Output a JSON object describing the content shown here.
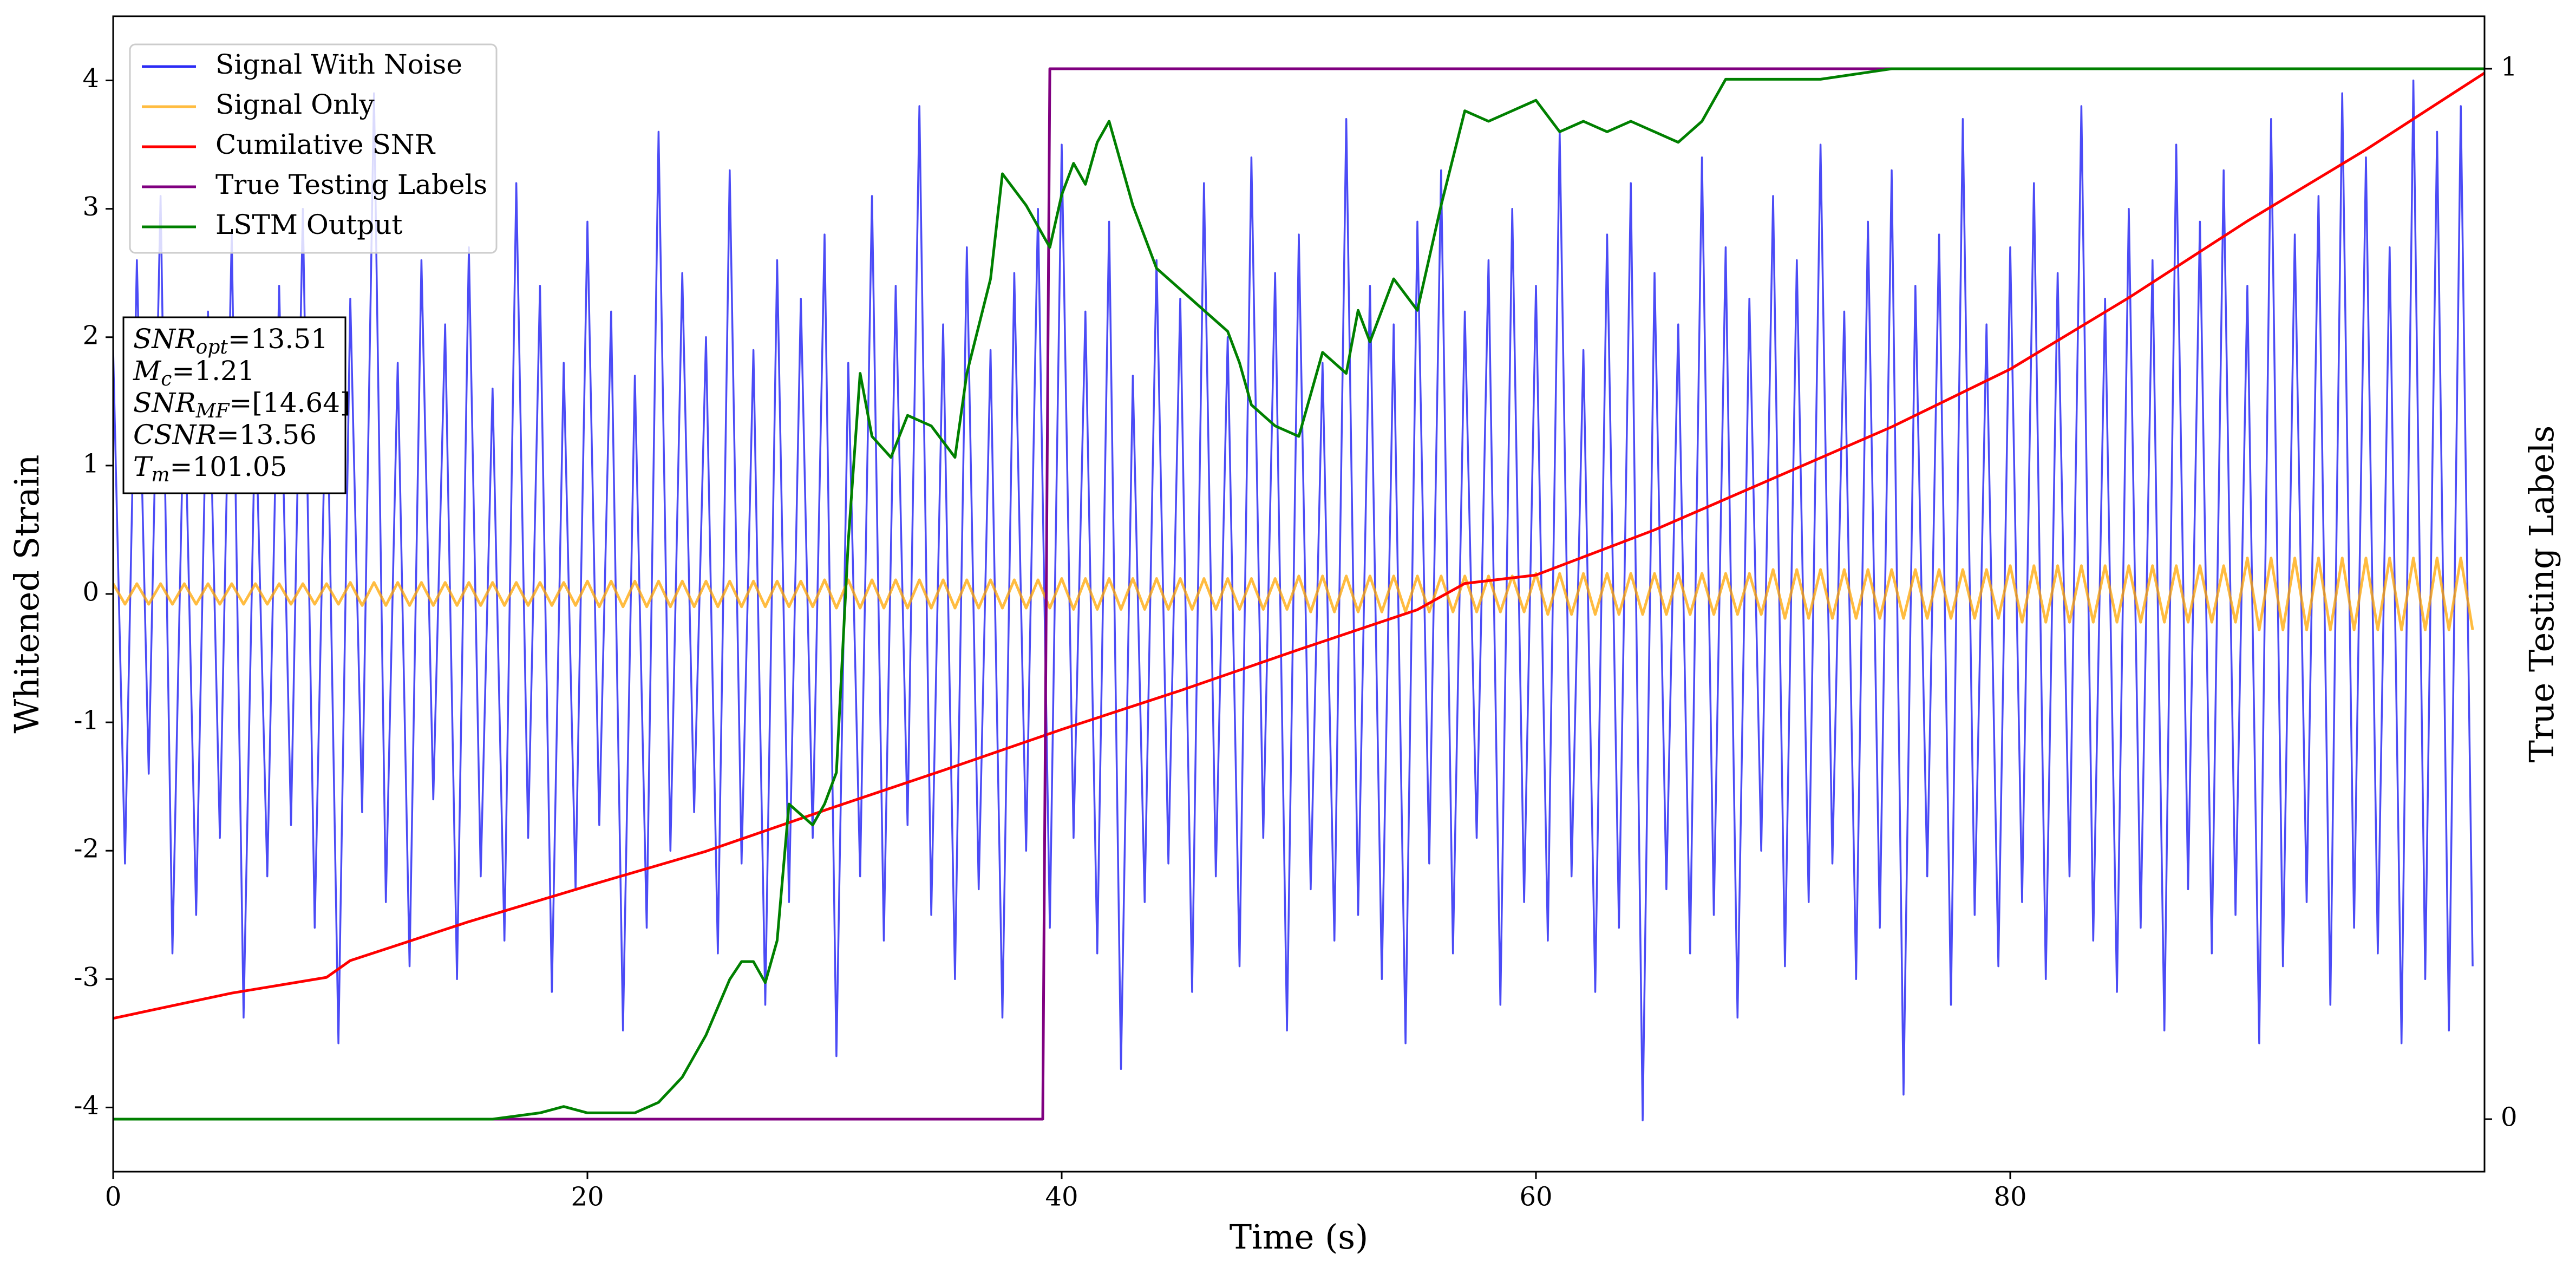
{
  "chart_data": {
    "type": "line",
    "xlabel": "Time (s)",
    "ylabel": "Whitened Strain",
    "y2label": "True Testing Labels",
    "xlim": [
      0,
      100
    ],
    "xticks": [
      0,
      20,
      40,
      60,
      80
    ],
    "ylim": [
      -4.5,
      4.5
    ],
    "yticks": [
      -4,
      -3,
      -2,
      -1,
      0,
      1,
      2,
      3,
      4
    ],
    "y2lim": [
      -0.05,
      1.05
    ],
    "y2ticks": [
      0,
      1
    ],
    "legend": "upper left",
    "x": [
      0,
      0.5,
      1,
      1.5,
      2,
      2.5,
      3,
      3.5,
      4,
      4.5,
      5,
      5.5,
      6,
      6.5,
      7,
      7.5,
      8,
      8.5,
      9,
      9.5,
      10,
      10.5,
      11,
      11.5,
      12,
      12.5,
      13,
      13.5,
      14,
      14.5,
      15,
      15.5,
      16,
      16.5,
      17,
      17.5,
      18,
      18.5,
      19,
      19.5,
      20,
      20.5,
      21,
      21.5,
      22,
      22.5,
      23,
      23.5,
      24,
      24.5,
      25,
      25.5,
      26,
      26.5,
      27,
      27.5,
      28,
      28.5,
      29,
      29.5,
      30,
      30.5,
      31,
      31.5,
      32,
      32.5,
      33,
      33.5,
      34,
      34.5,
      35,
      35.5,
      36,
      36.5,
      37,
      37.5,
      38,
      38.5,
      39,
      39.5,
      40,
      40.5,
      41,
      41.5,
      42,
      42.5,
      43,
      43.5,
      44,
      44.5,
      45,
      45.5,
      46,
      46.5,
      47,
      47.5,
      48,
      48.5,
      49,
      49.5,
      50,
      50.5,
      51,
      51.5,
      52,
      52.5,
      53,
      53.5,
      54,
      54.5,
      55,
      55.5,
      56,
      56.5,
      57,
      57.5,
      58,
      58.5,
      59,
      59.5,
      60,
      60.5,
      61,
      61.5,
      62,
      62.5,
      63,
      63.5,
      64,
      64.5,
      65,
      65.5,
      66,
      66.5,
      67,
      67.5,
      68,
      68.5,
      69,
      69.5,
      70,
      70.5,
      71,
      71.5,
      72,
      72.5,
      73,
      73.5,
      74,
      74.5,
      75,
      75.5,
      76,
      76.5,
      77,
      77.5,
      78,
      78.5,
      79,
      79.5,
      80,
      80.5,
      81,
      81.5,
      82,
      82.5,
      83,
      83.5,
      84,
      84.5,
      85,
      85.5,
      86,
      86.5,
      87,
      87.5,
      88,
      88.5,
      89,
      89.5,
      90,
      90.5,
      91,
      91.5,
      92,
      92.5,
      93,
      93.5,
      94,
      94.5,
      95,
      95.5,
      96,
      96.5,
      97,
      97.5,
      98,
      98.5,
      99,
      99.5
    ],
    "series": [
      {
        "name": "Signal With Noise",
        "color": "#2b2bf5",
        "values": [
          1.9,
          -2.1,
          2.6,
          -1.4,
          3.1,
          -2.8,
          1.7,
          -2.5,
          2.2,
          -1.9,
          2.8,
          -3.3,
          1.5,
          -2.2,
          2.4,
          -1.8,
          3.0,
          -2.6,
          1.9,
          -3.5,
          2.3,
          -1.7,
          3.9,
          -2.4,
          1.8,
          -2.9,
          2.6,
          -1.6,
          2.1,
          -3.0,
          2.7,
          -2.2,
          1.6,
          -2.7,
          3.2,
          -1.9,
          2.4,
          -3.1,
          1.8,
          -2.3,
          2.9,
          -1.8,
          2.2,
          -3.4,
          1.7,
          -2.6,
          3.6,
          -2.0,
          2.5,
          -1.7,
          2.0,
          -2.8,
          3.3,
          -2.1,
          1.9,
          -3.2,
          2.6,
          -2.4,
          2.3,
          -1.9,
          2.8,
          -3.6,
          1.8,
          -2.2,
          3.1,
          -2.7,
          2.4,
          -1.8,
          3.8,
          -2.5,
          2.1,
          -3.0,
          2.7,
          -2.3,
          1.9,
          -3.3,
          2.5,
          -2.0,
          3.0,
          -2.6,
          3.5,
          -1.9,
          2.2,
          -2.8,
          2.9,
          -3.7,
          1.7,
          -2.4,
          2.6,
          -2.1,
          2.3,
          -3.1,
          3.2,
          -2.2,
          2.0,
          -2.9,
          3.4,
          -1.9,
          2.5,
          -3.4,
          2.8,
          -2.3,
          1.8,
          -2.7,
          3.7,
          -2.5,
          2.4,
          -3.0,
          2.1,
          -3.5,
          2.9,
          -2.1,
          3.3,
          -2.8,
          2.2,
          -1.9,
          2.6,
          -3.2,
          3.0,
          -2.4,
          2.4,
          -2.7,
          3.6,
          -2.2,
          1.9,
          -3.1,
          2.8,
          -2.6,
          3.2,
          -4.1,
          2.5,
          -2.3,
          2.1,
          -2.8,
          3.4,
          -2.5,
          2.7,
          -3.3,
          2.3,
          -2.0,
          3.1,
          -2.9,
          2.6,
          -2.4,
          3.5,
          -2.1,
          2.2,
          -3.0,
          2.9,
          -2.6,
          3.3,
          -3.9,
          2.4,
          -2.2,
          2.8,
          -3.2,
          3.7,
          -2.5,
          2.1,
          -2.9,
          2.7,
          -2.4,
          3.2,
          -3.0,
          2.5,
          -2.2,
          3.8,
          -2.7,
          2.3,
          -3.1,
          3.0,
          -2.6,
          2.6,
          -3.4,
          3.5,
          -2.3,
          2.9,
          -2.8,
          3.3,
          -2.5,
          2.4,
          -3.5,
          3.7,
          -2.9,
          2.8,
          -2.4,
          3.1,
          -3.2,
          3.9,
          -2.6,
          3.4,
          -2.8,
          2.7,
          -3.5,
          4.0,
          -3.0,
          3.6,
          -3.4,
          3.8,
          -2.9
        ]
      },
      {
        "name": "Signal Only",
        "color": "#ffa500",
        "values": [
          0.08,
          -0.08,
          0.08,
          -0.08,
          0.08,
          -0.08,
          0.08,
          -0.08,
          0.08,
          -0.08,
          0.08,
          -0.08,
          0.08,
          -0.08,
          0.08,
          -0.08,
          0.08,
          -0.08,
          0.08,
          -0.08,
          0.09,
          -0.09,
          0.09,
          -0.09,
          0.09,
          -0.09,
          0.09,
          -0.09,
          0.09,
          -0.09,
          0.09,
          -0.09,
          0.09,
          -0.09,
          0.09,
          -0.09,
          0.09,
          -0.09,
          0.09,
          -0.09,
          0.1,
          -0.1,
          0.1,
          -0.1,
          0.1,
          -0.1,
          0.1,
          -0.1,
          0.1,
          -0.1,
          0.1,
          -0.1,
          0.1,
          -0.1,
          0.1,
          -0.1,
          0.1,
          -0.1,
          0.1,
          -0.1,
          0.11,
          -0.11,
          0.11,
          -0.11,
          0.11,
          -0.11,
          0.11,
          -0.11,
          0.11,
          -0.11,
          0.11,
          -0.11,
          0.11,
          -0.11,
          0.11,
          -0.11,
          0.11,
          -0.11,
          0.11,
          -0.11,
          0.12,
          -0.12,
          0.12,
          -0.12,
          0.12,
          -0.12,
          0.12,
          -0.12,
          0.12,
          -0.12,
          0.12,
          -0.12,
          0.12,
          -0.12,
          0.12,
          -0.12,
          0.12,
          -0.12,
          0.12,
          -0.12,
          0.14,
          -0.14,
          0.14,
          -0.14,
          0.14,
          -0.14,
          0.14,
          -0.14,
          0.14,
          -0.14,
          0.14,
          -0.14,
          0.14,
          -0.14,
          0.14,
          -0.14,
          0.14,
          -0.14,
          0.14,
          -0.14,
          0.16,
          -0.16,
          0.16,
          -0.16,
          0.16,
          -0.16,
          0.16,
          -0.16,
          0.16,
          -0.16,
          0.16,
          -0.16,
          0.16,
          -0.16,
          0.16,
          -0.16,
          0.16,
          -0.16,
          0.16,
          -0.16,
          0.19,
          -0.19,
          0.19,
          -0.19,
          0.19,
          -0.19,
          0.19,
          -0.19,
          0.19,
          -0.19,
          0.19,
          -0.19,
          0.19,
          -0.19,
          0.19,
          -0.19,
          0.19,
          -0.19,
          0.19,
          -0.19,
          0.22,
          -0.22,
          0.22,
          -0.22,
          0.22,
          -0.22,
          0.22,
          -0.22,
          0.22,
          -0.22,
          0.22,
          -0.22,
          0.22,
          -0.22,
          0.22,
          -0.22,
          0.22,
          -0.22,
          0.22,
          -0.22,
          0.28,
          -0.28,
          0.28,
          -0.28,
          0.28,
          -0.28,
          0.28,
          -0.28,
          0.28,
          -0.28,
          0.28,
          -0.28,
          0.28,
          -0.28,
          0.28,
          -0.28,
          0.28,
          -0.28,
          0.28,
          -0.28
        ]
      },
      {
        "name": "Cumilative SNR",
        "color": "#ff0000",
        "axis": "y2",
        "x": [
          0,
          5,
          9,
          10,
          15,
          20,
          25,
          30,
          35,
          40,
          45,
          50,
          55,
          57,
          60,
          65,
          70,
          75,
          80,
          85,
          90,
          95,
          100
        ],
        "values": [
          0.096,
          0.12,
          0.135,
          0.151,
          0.188,
          0.222,
          0.255,
          0.294,
          0.332,
          0.371,
          0.408,
          0.447,
          0.485,
          0.51,
          0.518,
          0.561,
          0.61,
          0.659,
          0.714,
          0.782,
          0.855,
          0.923,
          0.996
        ]
      },
      {
        "name": "True Testing Labels",
        "color": "#800080",
        "axis": "y2",
        "x": [
          0,
          39.2,
          39.5,
          100
        ],
        "values": [
          0,
          0,
          1,
          1
        ]
      },
      {
        "name": "LSTM Output",
        "color": "#008000",
        "axis": "y2",
        "x": [
          0,
          16,
          18,
          19,
          20,
          22,
          23,
          24,
          25,
          26,
          26.5,
          27,
          27.5,
          28,
          28.5,
          29.5,
          30,
          30.5,
          31,
          31.5,
          32,
          32.8,
          33.5,
          34.5,
          35.5,
          36,
          37,
          37.5,
          38.5,
          39.5,
          40,
          40.5,
          41,
          41.5,
          42,
          43,
          44,
          45,
          46,
          47,
          47.5,
          48,
          49,
          50,
          51,
          52,
          52.5,
          53,
          54,
          55,
          56,
          57,
          58,
          59,
          60,
          61,
          62,
          63,
          64,
          65,
          66,
          67,
          68,
          70,
          72,
          75,
          100
        ],
        "values": [
          0,
          0,
          0.006,
          0.012,
          0.006,
          0.006,
          0.016,
          0.04,
          0.08,
          0.133,
          0.15,
          0.15,
          0.13,
          0.17,
          0.3,
          0.28,
          0.3,
          0.33,
          0.55,
          0.71,
          0.65,
          0.63,
          0.67,
          0.66,
          0.63,
          0.71,
          0.8,
          0.9,
          0.87,
          0.83,
          0.88,
          0.91,
          0.89,
          0.93,
          0.95,
          0.87,
          0.81,
          0.79,
          0.77,
          0.75,
          0.72,
          0.68,
          0.66,
          0.65,
          0.73,
          0.71,
          0.77,
          0.74,
          0.8,
          0.77,
          0.87,
          0.96,
          0.95,
          0.96,
          0.97,
          0.94,
          0.95,
          0.94,
          0.95,
          0.94,
          0.93,
          0.95,
          0.99,
          0.99,
          0.99,
          1,
          1
        ]
      }
    ],
    "annotations": [
      {
        "symbol": "SNR",
        "subscript": "opt",
        "text": "=13.51"
      },
      {
        "symbol": "M",
        "subscript": "c",
        "text": "=1.21"
      },
      {
        "symbol": "SNR",
        "subscript": "MF",
        "text": "=[14.64]"
      },
      {
        "symbol": "CSNR",
        "subscript": "",
        "text": "=13.56"
      },
      {
        "symbol": "T",
        "subscript": "m",
        "text": "=101.05"
      }
    ]
  }
}
